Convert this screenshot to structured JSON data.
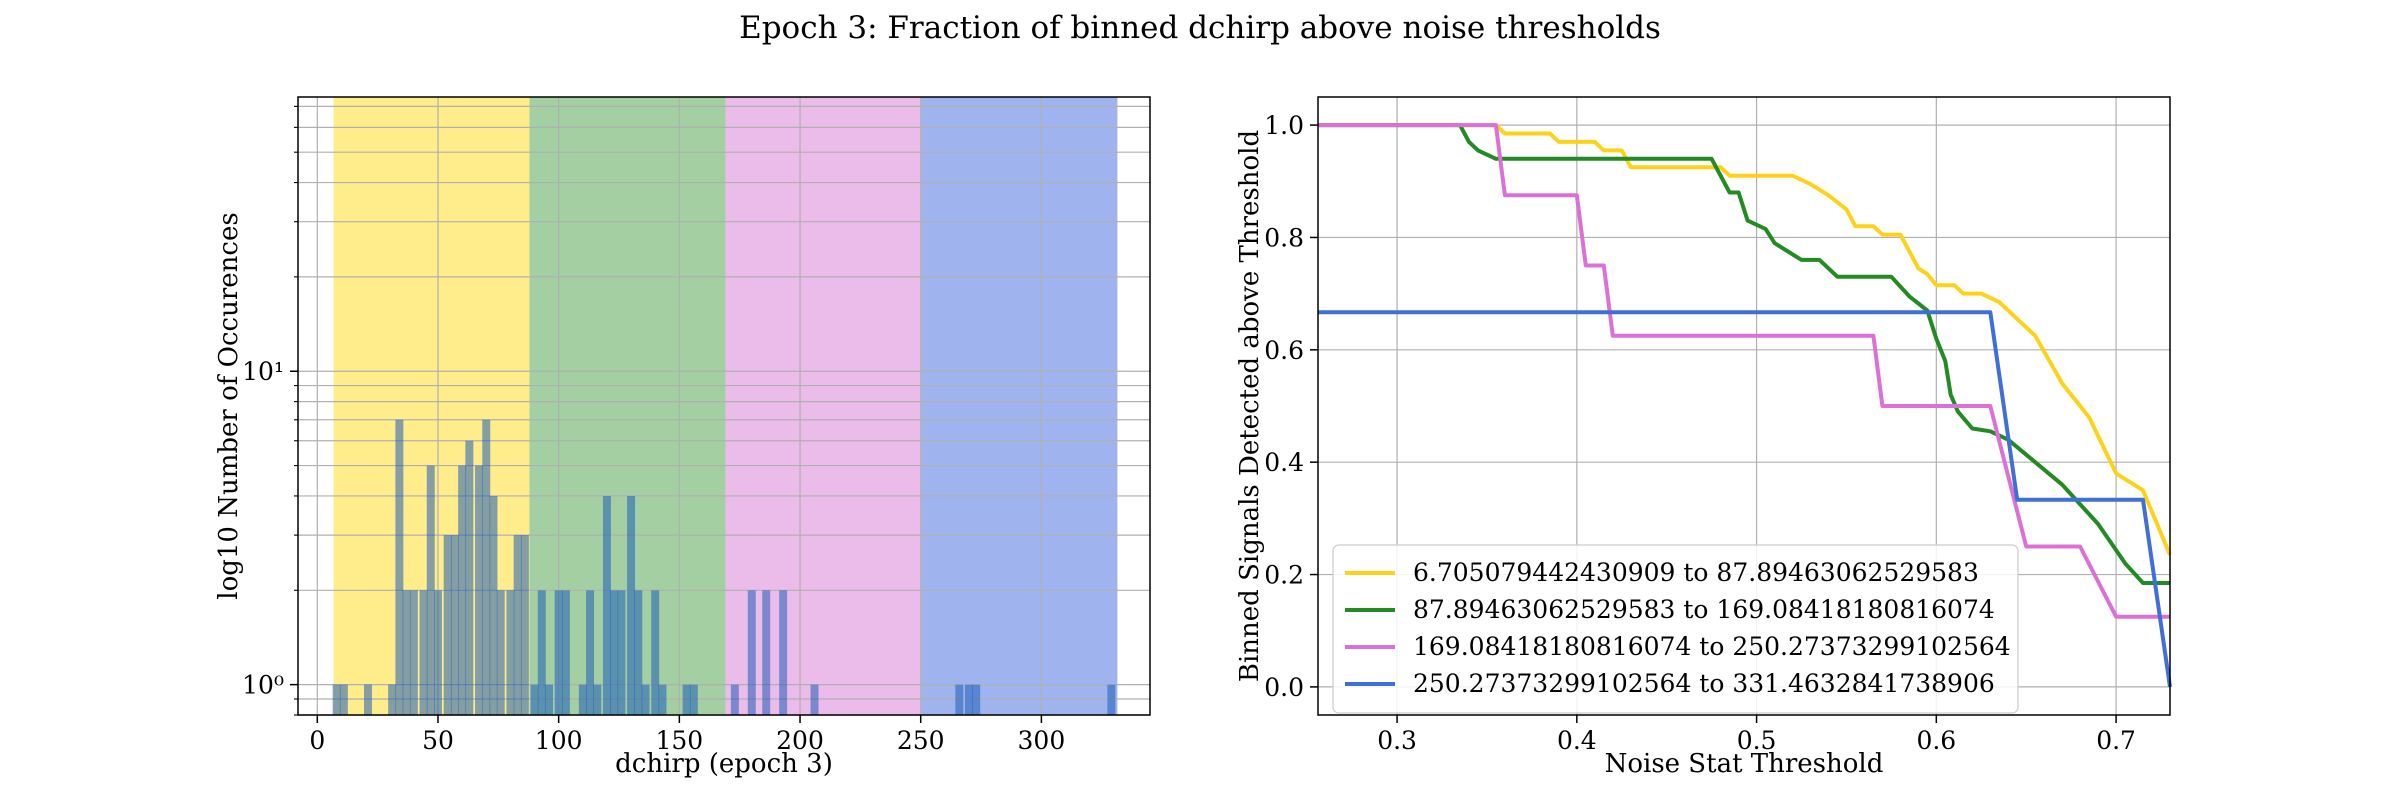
{
  "title": "Epoch 3: Fraction of binned dchirp above noise thresholds",
  "chart_data": [
    {
      "type": "bar",
      "subtype": "histogram",
      "xlabel": "dchirp (epoch 3)",
      "ylabel": "log10 Number of Occurences",
      "xlim": [
        -8,
        345
      ],
      "ylim": [
        0.8,
        75
      ],
      "yscale": "log",
      "grid": true,
      "xticks": [
        0,
        50,
        100,
        150,
        200,
        250,
        300
      ],
      "yticks": [
        1,
        10
      ],
      "ytick_labels": [
        "10⁰",
        "10¹"
      ],
      "bands": [
        {
          "start": 6.7,
          "end": 87.9,
          "color": "#ffec8b"
        },
        {
          "start": 87.9,
          "end": 169.1,
          "color": "#a3cfa3"
        },
        {
          "start": 169.1,
          "end": 250.3,
          "color": "#ebbbea"
        },
        {
          "start": 250.3,
          "end": 331.5,
          "color": "#9fb3ee"
        }
      ],
      "bar_color": "#1f5fb8",
      "bin_width": 3.3,
      "bins": [
        {
          "x": 8,
          "count": 1
        },
        {
          "x": 11,
          "count": 1
        },
        {
          "x": 21,
          "count": 1
        },
        {
          "x": 31,
          "count": 1
        },
        {
          "x": 34,
          "count": 7
        },
        {
          "x": 37,
          "count": 2
        },
        {
          "x": 40,
          "count": 2
        },
        {
          "x": 44,
          "count": 2
        },
        {
          "x": 47,
          "count": 5
        },
        {
          "x": 50,
          "count": 2
        },
        {
          "x": 54,
          "count": 3
        },
        {
          "x": 57,
          "count": 3
        },
        {
          "x": 60,
          "count": 5
        },
        {
          "x": 63,
          "count": 6
        },
        {
          "x": 67,
          "count": 5
        },
        {
          "x": 70,
          "count": 7
        },
        {
          "x": 73,
          "count": 4
        },
        {
          "x": 76,
          "count": 2
        },
        {
          "x": 80,
          "count": 2
        },
        {
          "x": 83,
          "count": 3
        },
        {
          "x": 86,
          "count": 3
        },
        {
          "x": 90,
          "count": 1
        },
        {
          "x": 93,
          "count": 2
        },
        {
          "x": 96,
          "count": 1
        },
        {
          "x": 100,
          "count": 2
        },
        {
          "x": 103,
          "count": 2
        },
        {
          "x": 110,
          "count": 1
        },
        {
          "x": 113,
          "count": 2
        },
        {
          "x": 116,
          "count": 1
        },
        {
          "x": 120,
          "count": 4
        },
        {
          "x": 123,
          "count": 2
        },
        {
          "x": 126,
          "count": 2
        },
        {
          "x": 130,
          "count": 4
        },
        {
          "x": 133,
          "count": 2
        },
        {
          "x": 136,
          "count": 1
        },
        {
          "x": 140,
          "count": 2
        },
        {
          "x": 143,
          "count": 1
        },
        {
          "x": 153,
          "count": 1
        },
        {
          "x": 156,
          "count": 1
        },
        {
          "x": 173,
          "count": 1
        },
        {
          "x": 180,
          "count": 2
        },
        {
          "x": 186,
          "count": 2
        },
        {
          "x": 193,
          "count": 2
        },
        {
          "x": 206,
          "count": 1
        },
        {
          "x": 266,
          "count": 1
        },
        {
          "x": 270,
          "count": 1
        },
        {
          "x": 273,
          "count": 1
        },
        {
          "x": 329,
          "count": 1
        }
      ]
    },
    {
      "type": "line",
      "xlabel": "Noise Stat Threshold",
      "ylabel": "Binned Signals Detected above Threshold",
      "xlim": [
        0.256,
        0.73
      ],
      "ylim": [
        -0.05,
        1.05
      ],
      "grid": true,
      "xticks": [
        0.3,
        0.4,
        0.5,
        0.6,
        0.7
      ],
      "yticks": [
        0.0,
        0.2,
        0.4,
        0.6,
        0.8,
        1.0
      ],
      "legend": "lower-left",
      "series": [
        {
          "name": "6.705079442430909 to 87.89463062529583",
          "color": "#ffd21a",
          "points": [
            [
              0.256,
              1.0
            ],
            [
              0.355,
              1.0
            ],
            [
              0.36,
              0.985
            ],
            [
              0.385,
              0.985
            ],
            [
              0.39,
              0.97
            ],
            [
              0.41,
              0.97
            ],
            [
              0.415,
              0.955
            ],
            [
              0.425,
              0.955
            ],
            [
              0.43,
              0.925
            ],
            [
              0.48,
              0.925
            ],
            [
              0.485,
              0.91
            ],
            [
              0.52,
              0.91
            ],
            [
              0.53,
              0.895
            ],
            [
              0.54,
              0.875
            ],
            [
              0.55,
              0.85
            ],
            [
              0.555,
              0.82
            ],
            [
              0.565,
              0.82
            ],
            [
              0.57,
              0.805
            ],
            [
              0.58,
              0.805
            ],
            [
              0.585,
              0.775
            ],
            [
              0.59,
              0.745
            ],
            [
              0.595,
              0.735
            ],
            [
              0.6,
              0.715
            ],
            [
              0.61,
              0.715
            ],
            [
              0.615,
              0.7
            ],
            [
              0.625,
              0.7
            ],
            [
              0.635,
              0.685
            ],
            [
              0.655,
              0.625
            ],
            [
              0.67,
              0.54
            ],
            [
              0.685,
              0.48
            ],
            [
              0.7,
              0.38
            ],
            [
              0.715,
              0.35
            ],
            [
              0.73,
              0.235
            ]
          ]
        },
        {
          "name": "87.89463062529583 to 169.08418180816074",
          "color": "#228b22",
          "points": [
            [
              0.256,
              1.0
            ],
            [
              0.335,
              1.0
            ],
            [
              0.34,
              0.97
            ],
            [
              0.345,
              0.955
            ],
            [
              0.355,
              0.94
            ],
            [
              0.475,
              0.94
            ],
            [
              0.485,
              0.88
            ],
            [
              0.49,
              0.88
            ],
            [
              0.495,
              0.83
            ],
            [
              0.505,
              0.815
            ],
            [
              0.51,
              0.79
            ],
            [
              0.515,
              0.78
            ],
            [
              0.525,
              0.76
            ],
            [
              0.535,
              0.76
            ],
            [
              0.545,
              0.73
            ],
            [
              0.575,
              0.73
            ],
            [
              0.585,
              0.695
            ],
            [
              0.595,
              0.67
            ],
            [
              0.6,
              0.62
            ],
            [
              0.605,
              0.58
            ],
            [
              0.608,
              0.52
            ],
            [
              0.612,
              0.49
            ],
            [
              0.62,
              0.46
            ],
            [
              0.63,
              0.455
            ],
            [
              0.64,
              0.44
            ],
            [
              0.655,
              0.4
            ],
            [
              0.67,
              0.36
            ],
            [
              0.69,
              0.29
            ],
            [
              0.705,
              0.22
            ],
            [
              0.715,
              0.185
            ],
            [
              0.73,
              0.185
            ]
          ]
        },
        {
          "name": "169.08418180816074 to 250.27373299102564",
          "color": "#dc70d7",
          "points": [
            [
              0.256,
              1.0
            ],
            [
              0.355,
              1.0
            ],
            [
              0.36,
              0.875
            ],
            [
              0.4,
              0.875
            ],
            [
              0.405,
              0.75
            ],
            [
              0.415,
              0.75
            ],
            [
              0.42,
              0.625
            ],
            [
              0.565,
              0.625
            ],
            [
              0.57,
              0.5
            ],
            [
              0.63,
              0.5
            ],
            [
              0.65,
              0.25
            ],
            [
              0.68,
              0.25
            ],
            [
              0.7,
              0.125
            ],
            [
              0.73,
              0.125
            ]
          ]
        },
        {
          "name": "250.27373299102564 to 331.4632841738906",
          "color": "#3f6fd8",
          "points": [
            [
              0.256,
              0.667
            ],
            [
              0.63,
              0.667
            ],
            [
              0.645,
              0.333
            ],
            [
              0.715,
              0.333
            ],
            [
              0.73,
              0.0
            ]
          ]
        }
      ]
    }
  ]
}
